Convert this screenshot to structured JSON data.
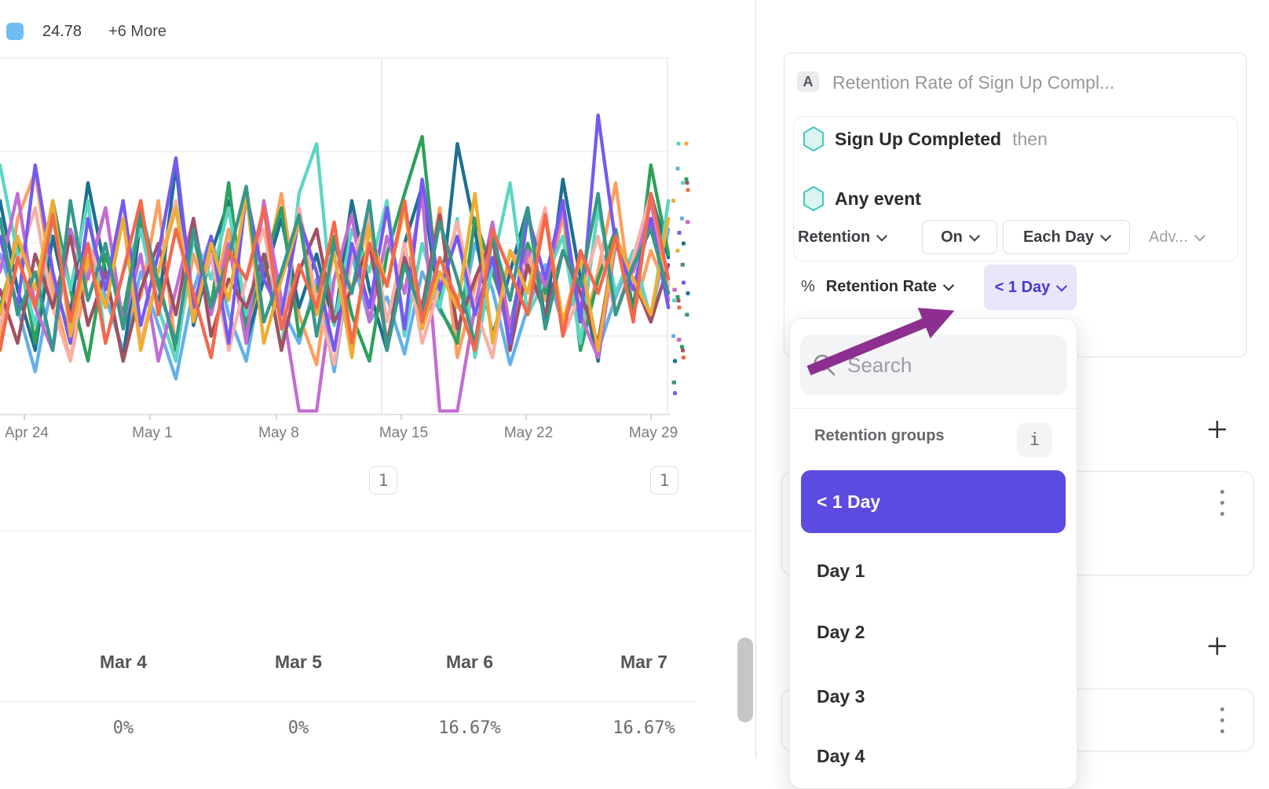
{
  "legend": {
    "value": "24.78",
    "more_label": "+6 More",
    "swatch_color": "#6FBCF3"
  },
  "chart_data": {
    "type": "line",
    "title": "",
    "xlabel": "",
    "ylabel": "",
    "x_labels": [
      "Apr 24",
      "May 1",
      "May 8",
      "May 15",
      "May 22",
      "May 29"
    ],
    "grid": true,
    "legend_position": "top-left",
    "y_unit": "percent",
    "ylim": [
      0,
      100
    ],
    "series": [
      {
        "color": "#63B1EA",
        "values": [
          45,
          30,
          12,
          38,
          22,
          48,
          33,
          18,
          40,
          25,
          10,
          35,
          50,
          28,
          15,
          42,
          30,
          20,
          38,
          12,
          45,
          26,
          33,
          17,
          40,
          29,
          22,
          48,
          35,
          14,
          30,
          42,
          25,
          38,
          18,
          33,
          45,
          27,
          52
        ]
      },
      {
        "color": "#FF9E5E",
        "values": [
          20,
          55,
          68,
          35,
          15,
          40,
          58,
          25,
          33,
          60,
          18,
          45,
          30,
          52,
          22,
          38,
          62,
          28,
          14,
          48,
          35,
          55,
          20,
          42,
          30,
          58,
          16,
          36,
          50,
          24,
          44,
          32,
          56,
          20,
          40,
          65,
          28,
          46,
          34
        ]
      },
      {
        "color": "#1E6F90",
        "values": [
          60,
          35,
          18,
          50,
          28,
          65,
          40,
          15,
          55,
          30,
          70,
          25,
          45,
          60,
          20,
          38,
          55,
          30,
          45,
          25,
          60,
          35,
          18,
          48,
          64,
          30,
          76,
          52,
          22,
          40,
          58,
          26,
          66,
          38,
          15,
          50,
          30,
          62,
          44
        ]
      },
      {
        "color": "#2FA05C",
        "values": [
          30,
          48,
          20,
          60,
          35,
          15,
          45,
          28,
          55,
          38,
          18,
          50,
          30,
          65,
          25,
          42,
          58,
          22,
          35,
          50,
          28,
          15,
          45,
          62,
          78,
          30,
          20,
          55,
          40,
          25,
          48,
          34,
          60,
          18,
          38,
          52,
          28,
          70,
          45
        ]
      },
      {
        "color": "#5CD6C3",
        "values": [
          70,
          45,
          25,
          55,
          35,
          60,
          20,
          40,
          52,
          30,
          15,
          50,
          38,
          58,
          28,
          45,
          18,
          62,
          76,
          25,
          52,
          40,
          60,
          22,
          48,
          30,
          55,
          16,
          42,
          65,
          28,
          38,
          50,
          20,
          58,
          34,
          46,
          26,
          60
        ]
      },
      {
        "color": "#C36CD3",
        "values": [
          40,
          62,
          30,
          18,
          52,
          38,
          58,
          25,
          45,
          15,
          35,
          55,
          28,
          48,
          20,
          60,
          32,
          1,
          1,
          38,
          56,
          26,
          50,
          34,
          62,
          1,
          1,
          30,
          54,
          24,
          46,
          36,
          58,
          28,
          16,
          48,
          40,
          60,
          32
        ]
      },
      {
        "color": "#F9AFA6",
        "values": [
          25,
          42,
          58,
          30,
          15,
          48,
          35,
          55,
          20,
          40,
          60,
          28,
          45,
          18,
          38,
          52,
          24,
          58,
          32,
          14,
          44,
          56,
          26,
          48,
          20,
          36,
          54,
          30,
          16,
          46,
          40,
          58,
          22,
          34,
          50,
          28,
          44,
          62,
          36
        ]
      },
      {
        "color": "#A05162",
        "values": [
          35,
          20,
          45,
          30,
          50,
          25,
          40,
          15,
          35,
          48,
          28,
          55,
          22,
          38,
          30,
          45,
          18,
          40,
          52,
          26,
          35,
          48,
          20,
          44,
          30,
          56,
          24,
          38,
          50,
          18,
          42,
          28,
          46,
          34,
          20,
          50,
          38,
          26,
          42
        ]
      },
      {
        "color": "#7659F2",
        "values": [
          50,
          30,
          70,
          40,
          20,
          55,
          35,
          60,
          25,
          45,
          72,
          30,
          50,
          20,
          62,
          38,
          28,
          55,
          40,
          18,
          48,
          30,
          58,
          24,
          66,
          35,
          50,
          28,
          44,
          20,
          56,
          38,
          60,
          26,
          84,
          48,
          35,
          55,
          30
        ]
      },
      {
        "color": "#EFAD33",
        "values": [
          28,
          50,
          35,
          60,
          22,
          44,
          30,
          55,
          18,
          40,
          58,
          26,
          48,
          32,
          62,
          20,
          38,
          54,
          28,
          45,
          16,
          52,
          36,
          58,
          24,
          40,
          30,
          62,
          20,
          46,
          34,
          56,
          26,
          44,
          18,
          50,
          38,
          28,
          55
        ]
      },
      {
        "color": "#37978A",
        "values": [
          55,
          28,
          40,
          18,
          60,
          32,
          48,
          24,
          58,
          36,
          20,
          52,
          30,
          44,
          64,
          26,
          40,
          56,
          22,
          48,
          34,
          60,
          18,
          42,
          28,
          54,
          38,
          20,
          50,
          32,
          58,
          24,
          46,
          36,
          62,
          28,
          42,
          52,
          34
        ]
      },
      {
        "color": "#F4684C",
        "values": [
          18,
          44,
          30,
          56,
          26,
          48,
          20,
          40,
          60,
          28,
          52,
          34,
          16,
          46,
          38,
          58,
          24,
          42,
          30,
          54,
          20,
          48,
          36,
          60,
          26,
          44,
          32,
          18,
          52,
          40,
          28,
          56,
          22,
          46,
          34,
          50,
          26,
          62,
          38
        ]
      }
    ]
  },
  "annotations": {
    "badge1": "1",
    "badge2": "1"
  },
  "table": {
    "headers": [
      "Mar 4",
      "Mar 5",
      "Mar 6",
      "Mar 7"
    ],
    "values": [
      "0%",
      "0%",
      "16.67%",
      "16.67%"
    ]
  },
  "panel": {
    "module_label": "A",
    "title": "Retention Rate of Sign Up Compl...",
    "event1": "Sign Up Completed",
    "event1_suffix": "then",
    "event2": "Any event",
    "controls": [
      {
        "label": "Retention"
      },
      {
        "label": "On"
      },
      {
        "label": "Each Day"
      },
      {
        "label": "Adv..."
      }
    ],
    "metric_prefix": "%",
    "metric_label": "Retention Rate",
    "metric_value": "< 1 Day",
    "accent_color": "#5B4BE0",
    "arrow_color": "#8D2F90"
  },
  "dropdown": {
    "search_placeholder": "Search",
    "group_label": "Retention groups",
    "info_glyph": "i",
    "items": [
      {
        "label": "< 1 Day",
        "selected": true
      },
      {
        "label": "Day 1",
        "selected": false
      },
      {
        "label": "Day 2",
        "selected": false
      },
      {
        "label": "Day 3",
        "selected": false
      },
      {
        "label": "Day 4",
        "selected": false
      }
    ]
  }
}
